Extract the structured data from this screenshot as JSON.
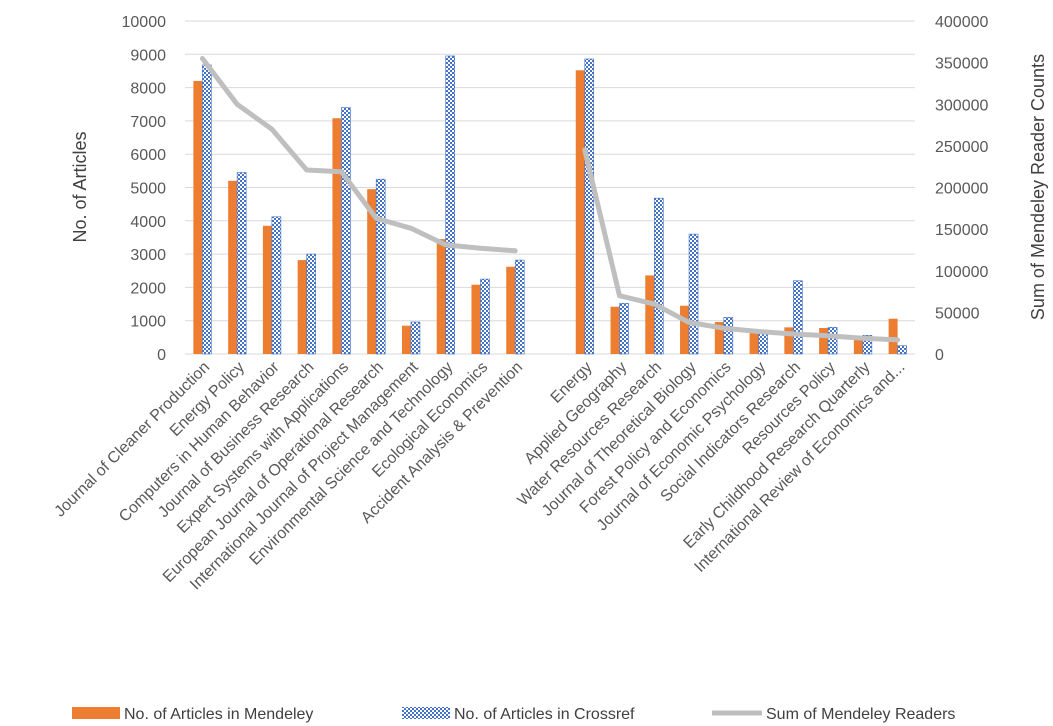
{
  "chart_data": {
    "type": "bar",
    "title": "",
    "categories": [
      "Journal of Cleaner Production",
      "Energy Policy",
      "Computers in Human Behavior",
      "Journal of Business Research",
      "Expert Systems with Applications",
      "European Journal of Operational Research",
      "International Journal of Project Management",
      "Environmental Science and Technology",
      "Ecological Economics",
      "Accident Analysis & Prevention",
      "",
      "Energy",
      "Applied Geography",
      "Water Resources Research",
      "Journal of Theoretical Biology",
      "Forest Policy and Economics",
      "Journal of Economic Psychology",
      "Social Indicators Research",
      "Resources Policy",
      "Early Childhood Research Quarterly",
      "International Review of Economics and..."
    ],
    "series": [
      {
        "name": "No. of Articles in Mendeley",
        "axis": "left",
        "type": "bar",
        "color": "#ED7D31",
        "values": [
          8200,
          5200,
          3850,
          2820,
          7080,
          4950,
          850,
          3450,
          2080,
          2620,
          null,
          8520,
          1420,
          2360,
          1450,
          960,
          720,
          800,
          780,
          500,
          1060
        ]
      },
      {
        "name": "No. of Articles in Crossref",
        "axis": "left",
        "type": "bar",
        "pattern": "checker",
        "color": "#4472C4",
        "values": [
          8680,
          5450,
          4120,
          3000,
          7400,
          5250,
          960,
          8950,
          2250,
          2820,
          null,
          8860,
          1520,
          4680,
          3600,
          1100,
          680,
          2200,
          800,
          560,
          250
        ]
      },
      {
        "name": "Sum of Mendeley Readers",
        "axis": "right",
        "type": "line",
        "color": "#BFBFBF",
        "values": [
          355000,
          300000,
          270000,
          221000,
          219000,
          163000,
          151000,
          131000,
          127000,
          124000,
          null,
          245000,
          70000,
          60000,
          38000,
          31000,
          27000,
          24000,
          22000,
          19000,
          17000
        ]
      }
    ],
    "axes": {
      "left": {
        "label": "No. of Articles",
        "min": 0,
        "max": 10000,
        "step": 1000,
        "tick_labels": [
          "0",
          "1000",
          "2000",
          "3000",
          "4000",
          "5000",
          "6000",
          "7000",
          "8000",
          "9000",
          "10000"
        ]
      },
      "right": {
        "label": "Sum of Mendeley Reader Counts",
        "min": 0,
        "max": 400000,
        "step": 50000,
        "tick_labels": [
          "0",
          "50000",
          "100000",
          "150000",
          "200000",
          "250000",
          "300000",
          "350000",
          "400000"
        ]
      }
    },
    "grid": true,
    "legend_position": "bottom",
    "legend": [
      {
        "label": "No. of Articles in Mendeley",
        "series": 0
      },
      {
        "label": "No. of Articles in Crossref",
        "series": 1
      },
      {
        "label": "Sum of Mendeley Readers",
        "series": 2
      }
    ]
  }
}
